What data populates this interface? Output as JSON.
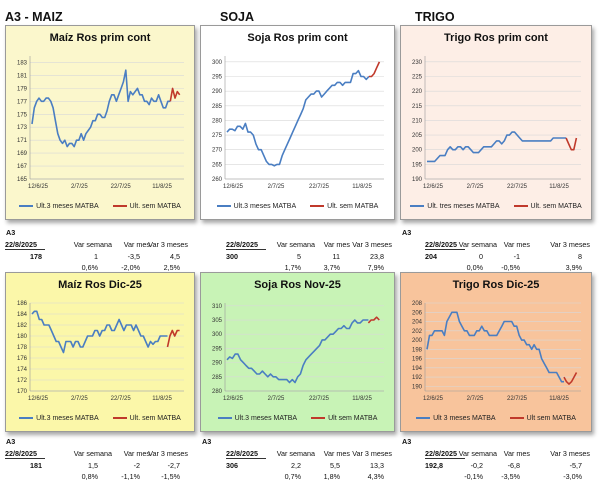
{
  "sections": {
    "maiz": "A3 - MAIZ",
    "soja": "SOJA",
    "trigo": "TRIGO"
  },
  "colors": {
    "blue": "#4a7ec2",
    "red": "#c0392b",
    "grid": "#d8d8d8"
  },
  "chart_data": [
    {
      "type": "line",
      "title": "Maíz Ros prim cont",
      "background": "#fbf7cc",
      "ylim": [
        165,
        184
      ],
      "yticks": [
        165,
        167,
        169,
        171,
        173,
        175,
        177,
        179,
        181,
        183
      ],
      "xticks": [
        "12/6/25",
        "2/7/25",
        "22/7/25",
        "11/8/25"
      ],
      "legend": [
        "Ult.3 meses MATBA",
        "Ult. sem MATBA"
      ],
      "series": [
        {
          "color": "blue",
          "values": [
            173.5,
            176,
            177,
            177.5,
            177,
            177,
            177.5,
            177.5,
            177,
            176,
            174,
            172,
            171,
            170.5,
            171,
            170,
            170.5,
            170.5,
            170,
            171,
            171,
            172,
            171,
            172,
            172.5,
            173,
            174,
            174,
            175,
            175,
            174.5,
            174.5,
            175.5,
            177,
            178,
            178,
            177,
            178,
            179,
            180,
            181.8,
            177,
            178.5,
            178,
            178.5,
            179,
            178,
            178,
            177,
            177,
            176.5,
            177.5,
            177,
            177,
            178,
            177,
            176,
            176,
            177,
            177
          ]
        },
        {
          "color": "red",
          "values": [
            177,
            179,
            177.5,
            178.5,
            178
          ]
        }
      ]
    },
    {
      "type": "line",
      "title": "Soja Ros prim cont",
      "background": "#ffffff",
      "ylim": [
        260,
        302
      ],
      "yticks": [
        260,
        265,
        270,
        275,
        280,
        285,
        290,
        295,
        300
      ],
      "xticks": [
        "12/6/25",
        "2/7/25",
        "22/7/25",
        "11/8/25"
      ],
      "legend": [
        "Ult.3 meses MATBA",
        "Ult. sem MATBA"
      ],
      "series": [
        {
          "color": "blue",
          "values": [
            276,
            277,
            277,
            276.5,
            278,
            278,
            277,
            279,
            276,
            276,
            275,
            272,
            270,
            270,
            268,
            266,
            265,
            265,
            264.5,
            265,
            265,
            268,
            270,
            272,
            274,
            276,
            278,
            280,
            282,
            284,
            287,
            288,
            289,
            289,
            290,
            290,
            288,
            289,
            290,
            291,
            292,
            292,
            293,
            293,
            292,
            293,
            293,
            293,
            296,
            296,
            297,
            295,
            295,
            294,
            295
          ]
        },
        {
          "color": "red",
          "values": [
            295,
            295,
            296,
            298,
            300
          ]
        }
      ]
    },
    {
      "type": "line",
      "title": "Trigo Ros prim cont",
      "background": "#fdeee6",
      "ylim": [
        190,
        232
      ],
      "yticks": [
        190,
        195,
        200,
        205,
        210,
        215,
        220,
        225,
        230
      ],
      "xticks": [
        "12/6/25",
        "2/7/25",
        "22/7/25",
        "11/8/25"
      ],
      "legend": [
        "Ult. tres meses MATBA",
        "Ult. sem MATBA"
      ],
      "series": [
        {
          "color": "blue",
          "values": [
            196,
            196,
            196,
            196,
            197,
            198,
            198,
            198,
            200,
            201,
            200,
            200,
            201,
            201,
            200,
            201,
            201,
            200,
            199,
            199,
            199,
            200,
            201,
            201,
            201,
            201,
            202,
            203,
            203,
            202,
            203,
            205,
            205,
            206,
            206,
            205,
            204,
            203,
            203,
            203,
            203,
            203,
            203,
            203,
            203,
            203,
            203,
            203,
            203,
            204,
            204,
            204,
            204,
            204,
            204
          ]
        },
        {
          "color": "red",
          "values": [
            204,
            202,
            200,
            200,
            204
          ]
        }
      ]
    },
    {
      "type": "line",
      "title": "Maíz Ros Dic-25",
      "background": "#fbf7a9",
      "ylim": [
        170,
        186
      ],
      "yticks": [
        170,
        172,
        174,
        176,
        178,
        180,
        182,
        184,
        186
      ],
      "xticks": [
        "12/6/25",
        "2/7/25",
        "22/7/25",
        "11/8/25"
      ],
      "legend": [
        "Ult.3 meses MATBA",
        "Ult. sem MATBA"
      ],
      "series": [
        {
          "color": "blue",
          "values": [
            184,
            184.5,
            184.5,
            183,
            183,
            182,
            182,
            182,
            181,
            180,
            179,
            179,
            178,
            177,
            179,
            179,
            179,
            178,
            179,
            179,
            178,
            178,
            179,
            180,
            180,
            180,
            181,
            181,
            180,
            181,
            181,
            182,
            182,
            181,
            181,
            182,
            183,
            182,
            181,
            182,
            182,
            182,
            181,
            182,
            181,
            180,
            180,
            179,
            178,
            179,
            178.5,
            179,
            179,
            180,
            180,
            180,
            180
          ]
        },
        {
          "color": "red",
          "values": [
            178,
            180,
            181,
            180,
            181,
            181
          ]
        }
      ]
    },
    {
      "type": "line",
      "title": "Soja Ros Nov-25",
      "background": "#c8f3b6",
      "ylim": [
        280,
        311
      ],
      "yticks": [
        280,
        285,
        290,
        295,
        300,
        305,
        310
      ],
      "xticks": [
        "12/6/25",
        "2/7/25",
        "22/7/25",
        "11/8/25"
      ],
      "legend": [
        "Ult.3 meses MATBA",
        "Ult sem MATBA"
      ],
      "series": [
        {
          "color": "blue",
          "values": [
            291,
            292,
            291.5,
            293,
            293,
            291,
            290,
            289,
            288,
            288,
            287,
            286,
            286,
            287,
            286,
            285,
            286,
            285,
            285,
            284,
            284,
            284,
            284,
            283,
            284,
            283,
            285,
            286,
            289,
            291,
            292,
            293,
            294,
            295,
            296,
            298,
            298,
            299,
            300,
            300,
            301,
            302,
            302,
            303,
            302,
            302,
            304,
            305,
            304,
            304,
            305,
            305,
            305
          ]
        },
        {
          "color": "red",
          "values": [
            304,
            305,
            305,
            306,
            305
          ]
        }
      ]
    },
    {
      "type": "line",
      "title": "Trigo Ros Dic-25",
      "background": "#f8c49c",
      "ylim": [
        189,
        208
      ],
      "yticks": [
        190,
        192,
        194,
        196,
        198,
        200,
        202,
        204,
        206,
        208
      ],
      "xticks": [
        "12/6/25",
        "2/7/25",
        "22/7/25",
        "11/8/25"
      ],
      "legend": [
        "Ult 3 meses MATBA",
        "Ult sem MATBA"
      ],
      "series": [
        {
          "color": "blue",
          "values": [
            198,
            201,
            201,
            202,
            202,
            202,
            202,
            201,
            204,
            205,
            206,
            206,
            206,
            204,
            203,
            202,
            202,
            201,
            201,
            201,
            202,
            202,
            203,
            202,
            202,
            201,
            201,
            201,
            201,
            202,
            203,
            204,
            204,
            204,
            204,
            203,
            203,
            201,
            200,
            200,
            199,
            199,
            198,
            199,
            198,
            198,
            196,
            195,
            194,
            193,
            193,
            193,
            193,
            192,
            191,
            191
          ]
        },
        {
          "color": "red",
          "values": [
            192,
            191,
            190.5,
            191,
            192,
            193
          ]
        }
      ]
    }
  ],
  "stats": [
    {
      "a3": "A3",
      "date": "22/8/2025",
      "h1": "Var semana",
      "h2": "Var mes",
      "h3": "Var 3 meses",
      "price": "178",
      "v1": "1",
      "v2": "-3,5",
      "v3": "4,5",
      "p1": "0,6%",
      "p2": "-2,0%",
      "p3": "2,5%"
    },
    {
      "a3": "",
      "date": "22/8/2025",
      "h1": "Var semana",
      "h2": "Var mes",
      "h3": "Var 3 meses",
      "price": "300",
      "v1": "5",
      "v2": "11",
      "v3": "23,8",
      "p1": "1,7%",
      "p2": "3,7%",
      "p3": "7,9%"
    },
    {
      "a3": "A3",
      "date": "22/8/2025",
      "h1": "Var semana",
      "h2": "Var mes",
      "h3": "Var 3 meses",
      "price": "204",
      "v1": "0",
      "v2": "-1",
      "v3": "8",
      "p1": "0,0%",
      "p2": "-0,5%",
      "p3": "3,9%"
    },
    {
      "a3": "A3",
      "date": "22/8/2025",
      "h1": "Var semana",
      "h2": "Var mes",
      "h3": "Var 3 meses",
      "price": "181",
      "v1": "1,5",
      "v2": "-2",
      "v3": "-2,7",
      "p1": "0,8%",
      "p2": "-1,1%",
      "p3": "-1,5%"
    },
    {
      "a3": "A3",
      "date": "22/8/2025",
      "h1": "Var semana",
      "h2": "Var mes",
      "h3": "Var 3 meses",
      "price": "306",
      "v1": "2,2",
      "v2": "5,5",
      "v3": "13,3",
      "p1": "0,7%",
      "p2": "1,8%",
      "p3": "4,3%"
    },
    {
      "a3": "A3",
      "date": "22/8/2025",
      "h1": "Var semana",
      "h2": "Var mes",
      "h3": "Var 3 meses",
      "price": "192,8",
      "v1": "-0,2",
      "v2": "-6,8",
      "v3": "-5,7",
      "p1": "-0,1%",
      "p2": "-3,5%",
      "p3": "-3,0%"
    }
  ]
}
